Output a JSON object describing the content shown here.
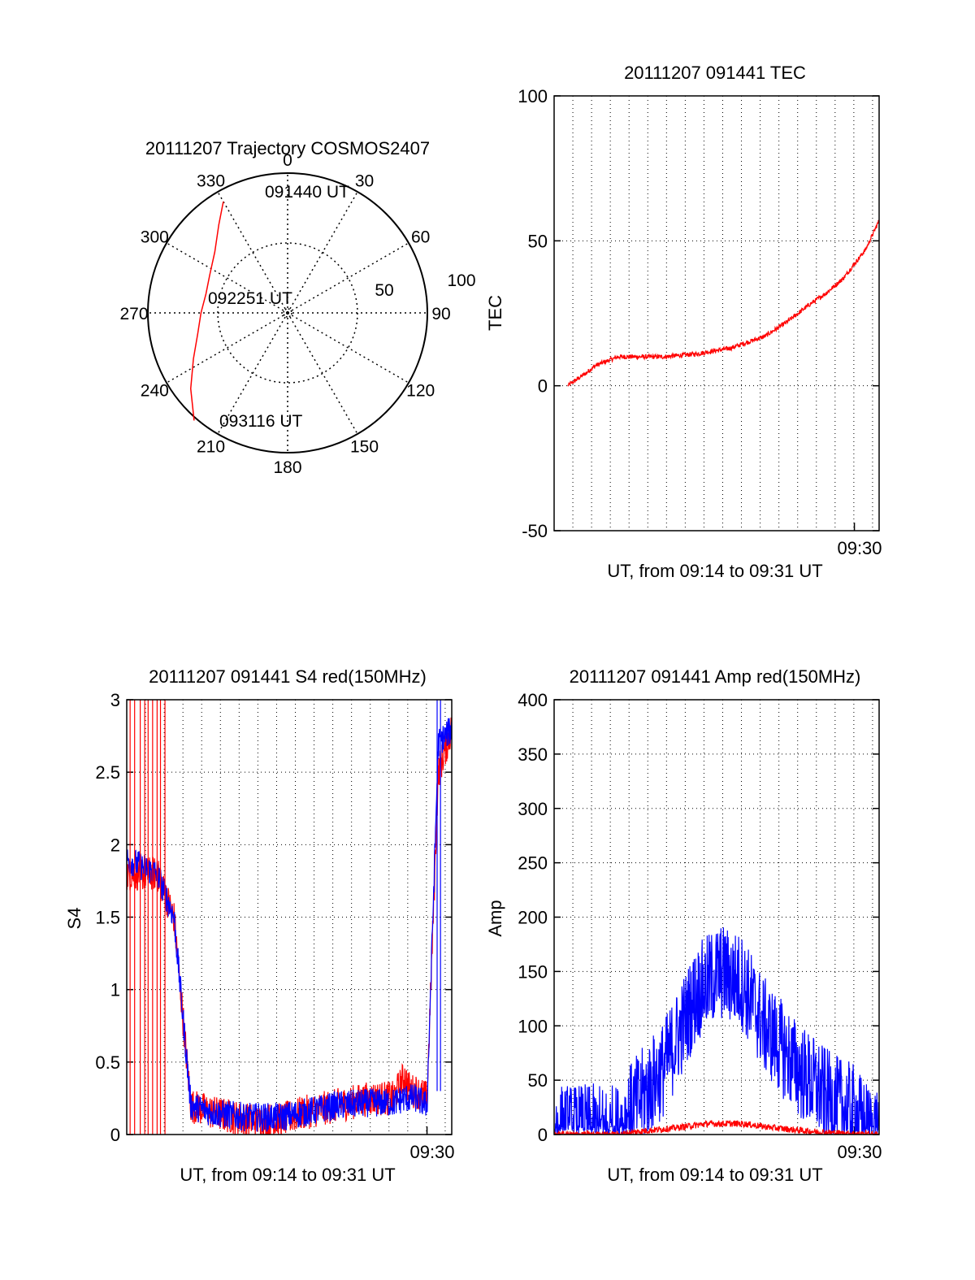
{
  "figure": {
    "colors": {
      "red": "#ff0000",
      "blue": "#0000ff",
      "axis": "#000000",
      "grid": "#000000"
    }
  },
  "chart_data": [
    {
      "type": "polar",
      "title": "20111207 Trajectory COSMOS2407",
      "azimuth_labels": [
        "0",
        "30",
        "60",
        "90",
        "120",
        "150",
        "180",
        "210",
        "240",
        "270",
        "300",
        "330"
      ],
      "radial_labels": [
        "50",
        "100"
      ],
      "annotations": {
        "start": "091440 UT",
        "middle": "092251 UT",
        "end": "093116 UT"
      },
      "trajectory": {
        "color": "#ff0000",
        "points": [
          [
            330,
            92
          ],
          [
            322,
            80
          ],
          [
            310,
            68
          ],
          [
            296,
            62
          ],
          [
            283,
            60
          ],
          [
            270,
            62
          ],
          [
            257,
            66
          ],
          [
            244,
            75
          ],
          [
            232,
            88
          ],
          [
            221,
            102
          ]
        ]
      },
      "grid": true
    },
    {
      "type": "line",
      "title": "20111207 091441 TEC",
      "xlabel": "UT, from 09:14 to 09:31 UT",
      "ylabel": "TEC",
      "xlim": [
        9.233,
        9.522
      ],
      "ylim": [
        -50,
        100
      ],
      "yticks": [
        "100",
        "50",
        "0",
        "-50"
      ],
      "xtick_label": "09:30",
      "xtick_value": 9.5,
      "grid": true,
      "series": [
        {
          "color": "#ff0000",
          "x": [
            9.245,
            9.26,
            9.27,
            9.29,
            9.3,
            9.33,
            9.36,
            9.39,
            9.42,
            9.44,
            9.46,
            9.475,
            9.49,
            9.5,
            9.51,
            9.522
          ],
          "y": [
            0,
            4,
            7,
            10,
            10,
            10,
            11,
            13,
            17,
            22,
            28,
            32,
            37,
            42,
            47,
            57
          ],
          "noise": 0.8
        }
      ]
    },
    {
      "type": "line",
      "title": "20111207 091441 S4 red(150MHz)",
      "xlabel": "UT, from 09:14 to 09:31 UT",
      "ylabel": "S4",
      "xlim": [
        9.233,
        9.522
      ],
      "ylim": [
        0,
        3
      ],
      "yticks": [
        "3",
        "2.5",
        "2",
        "1.5",
        "1",
        "0.5",
        "0"
      ],
      "xtick_label": "09:30",
      "xtick_value": 9.5,
      "grid": true,
      "series": [
        {
          "color": "#ff0000",
          "x": [
            9.233,
            9.26,
            9.275,
            9.29,
            9.31,
            9.34,
            9.37,
            9.39,
            9.42,
            9.45,
            9.47,
            9.48,
            9.485,
            9.49,
            9.5,
            9.51,
            9.522
          ],
          "y": [
            1.8,
            1.8,
            1.5,
            0.2,
            0.15,
            0.1,
            0.1,
            0.15,
            0.2,
            0.25,
            0.25,
            0.4,
            0.3,
            0.3,
            0.25,
            2.5,
            2.8
          ],
          "noise": 0.12
        },
        {
          "color": "#0000ff",
          "x": [
            9.233,
            9.26,
            9.275,
            9.29,
            9.31,
            9.34,
            9.37,
            9.39,
            9.42,
            9.45,
            9.47,
            9.48,
            9.49,
            9.5,
            9.51,
            9.522
          ],
          "y": [
            1.9,
            1.8,
            1.5,
            0.2,
            0.15,
            0.12,
            0.12,
            0.15,
            0.2,
            0.22,
            0.22,
            0.25,
            0.25,
            0.2,
            2.7,
            2.8
          ],
          "noise": 0.1
        }
      ]
    },
    {
      "type": "line",
      "title": "20111207 091441 Amp red(150MHz)",
      "xlabel": "UT, from 09:14 to 09:31 UT",
      "ylabel": "Amp",
      "xlim": [
        9.233,
        9.522
      ],
      "ylim": [
        0,
        400
      ],
      "yticks": [
        "400",
        "350",
        "300",
        "250",
        "200",
        "150",
        "100",
        "50",
        "0"
      ],
      "xtick_label": "09:30",
      "xtick_value": 9.5,
      "grid": true,
      "series": [
        {
          "color": "#0000ff",
          "x": [
            9.233,
            9.29,
            9.3,
            9.33,
            9.36,
            9.38,
            9.4,
            9.42,
            9.45,
            9.48,
            9.5,
            9.51,
            9.522
          ],
          "y": [
            2,
            2,
            20,
            60,
            130,
            150,
            140,
            100,
            60,
            30,
            20,
            5,
            2
          ],
          "noise": 45
        },
        {
          "color": "#ff0000",
          "x": [
            9.233,
            9.29,
            9.31,
            9.34,
            9.37,
            9.4,
            9.43,
            9.46,
            9.49,
            9.522
          ],
          "y": [
            0,
            0,
            3,
            6,
            10,
            10,
            6,
            3,
            1,
            0
          ],
          "noise": 3
        }
      ]
    }
  ]
}
